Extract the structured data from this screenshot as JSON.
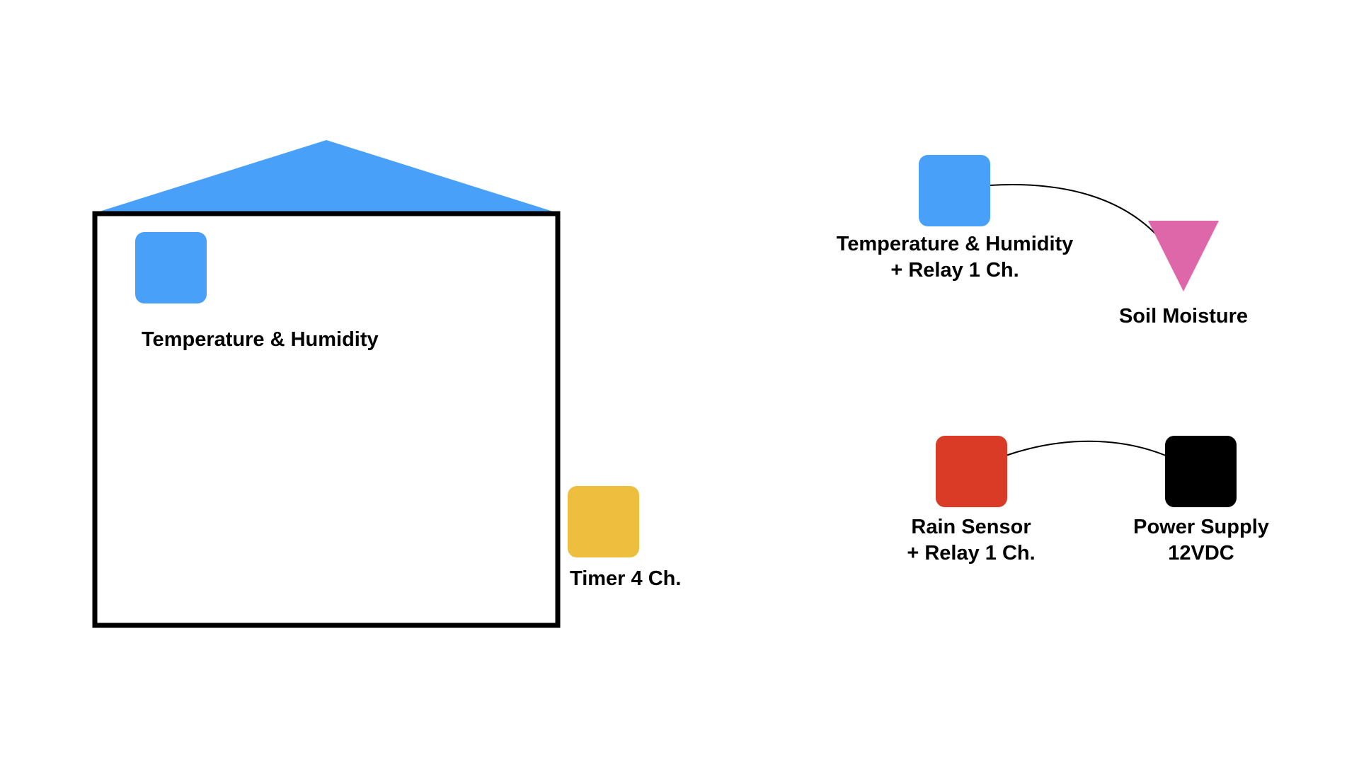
{
  "colors": {
    "blue": "#48A0F8",
    "yellow": "#EEBE3F",
    "red": "#DA3B26",
    "black": "#000000",
    "pink": "#DD67A8",
    "outline": "#000000",
    "connector": "#000000"
  },
  "greenhouse": {
    "sensor": {
      "icon": "blue-square",
      "label": "Temperature & Humidity"
    }
  },
  "timer": {
    "icon": "yellow-square",
    "label": "Timer 4 Ch."
  },
  "outdoor_top": {
    "temp_relay": {
      "icon": "blue-square",
      "label_line1": "Temperature & Humidity",
      "label_line2": "+ Relay 1 Ch."
    },
    "soil": {
      "icon": "pink-triangle",
      "label": "Soil Moisture"
    }
  },
  "outdoor_bottom": {
    "rain": {
      "icon": "red-square",
      "label_line1": "Rain Sensor",
      "label_line2": "+ Relay 1 Ch."
    },
    "power": {
      "icon": "black-square",
      "label_line1": "Power Supply",
      "label_line2": "12VDC"
    }
  }
}
